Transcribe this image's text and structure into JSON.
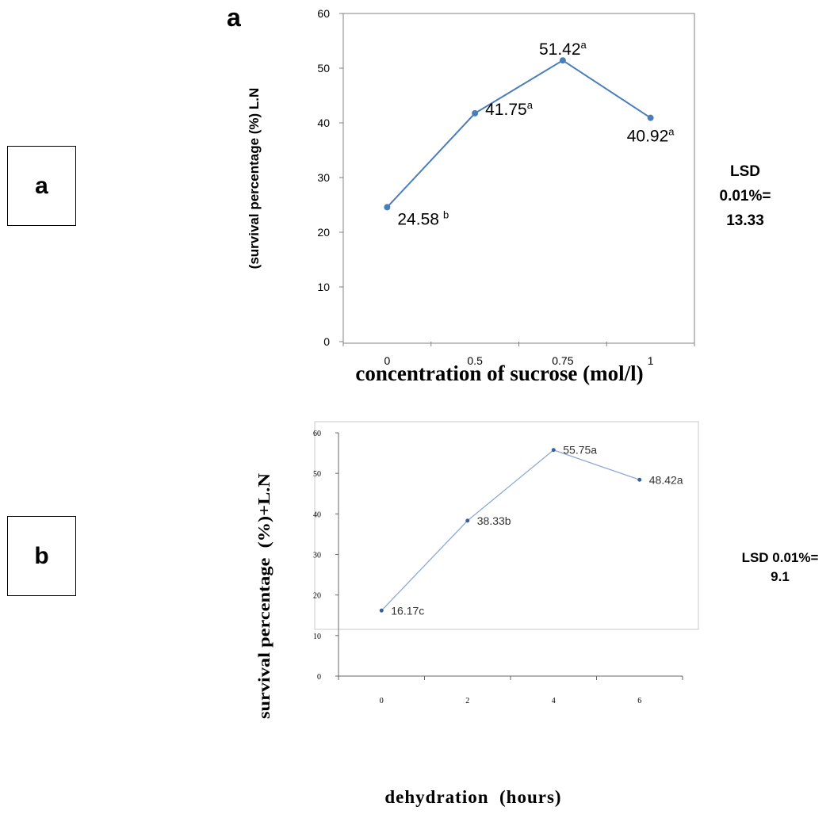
{
  "panels": [
    {
      "label": "a"
    },
    {
      "label": "b"
    }
  ],
  "chart_a_letter": "a",
  "lsd": [
    {
      "lines": [
        "LSD",
        "0.01%=",
        "13.33"
      ]
    },
    {
      "lines": [
        "LSD 0.01%=",
        "9.1"
      ]
    }
  ],
  "colors": {
    "line_a": "#4a7ebb",
    "line_b": "#8eaad2",
    "axis": "#808080",
    "marker_b": "#3a5f9a"
  },
  "chart_data": [
    {
      "type": "line",
      "title": "",
      "xlabel": "concentration of sucrose (mol/l)",
      "ylabel": "(survival percentage (%) L.N",
      "categories": [
        "0",
        "0.5",
        "0.75",
        "1"
      ],
      "series": [
        {
          "values": [
            24.58,
            41.75,
            51.42,
            40.92
          ]
        }
      ],
      "data_labels": [
        {
          "value": "24.58",
          "letter": "b"
        },
        {
          "value": "41.75",
          "letter": "a"
        },
        {
          "value": "51.42",
          "letter": "a"
        },
        {
          "value": "40.92",
          "letter": "a"
        }
      ],
      "y_ticks": [
        "0",
        "10",
        "20",
        "30",
        "40",
        "50",
        "60"
      ],
      "ylim": [
        0,
        60
      ],
      "grid": false
    },
    {
      "type": "line",
      "title": "",
      "xlabel": "dehydration  (hours)",
      "ylabel": "survival percentage  (%)+L.N",
      "categories": [
        "0",
        "2",
        "4",
        "6"
      ],
      "series": [
        {
          "values": [
            16.17,
            38.33,
            55.75,
            48.42
          ]
        }
      ],
      "data_labels": [
        {
          "value": "16.17c"
        },
        {
          "value": "38.33b"
        },
        {
          "value": "55.75a"
        },
        {
          "value": "48.42a"
        }
      ],
      "y_ticks": [
        "0",
        "10",
        "20",
        "30",
        "40",
        "50",
        "60"
      ],
      "ylim": [
        0,
        60
      ],
      "grid": false
    }
  ]
}
